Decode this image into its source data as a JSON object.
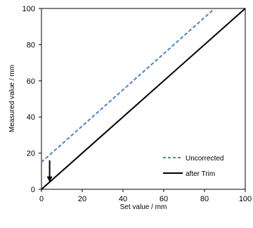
{
  "chart_data": {
    "type": "line",
    "xlabel": "Set value / mm",
    "ylabel": "Measured value / mm",
    "xlim": [
      0,
      100
    ],
    "ylim": [
      0,
      100
    ],
    "xticks": [
      0,
      20,
      40,
      60,
      80,
      100
    ],
    "yticks": [
      0,
      20,
      40,
      60,
      80,
      100
    ],
    "grid": false,
    "legend_position": "bottom-right",
    "series": [
      {
        "name": "Uncorrected",
        "style": "dashed",
        "color": "#4f81bd",
        "x": [
          0,
          85
        ],
        "y": [
          15,
          100
        ]
      },
      {
        "name": "after Trim",
        "style": "solid",
        "color": "#000000",
        "x": [
          0,
          100
        ],
        "y": [
          0,
          100
        ]
      }
    ],
    "annotations": [
      {
        "type": "arrow",
        "x": 4,
        "y_from": 16,
        "y_to": 4
      }
    ]
  }
}
